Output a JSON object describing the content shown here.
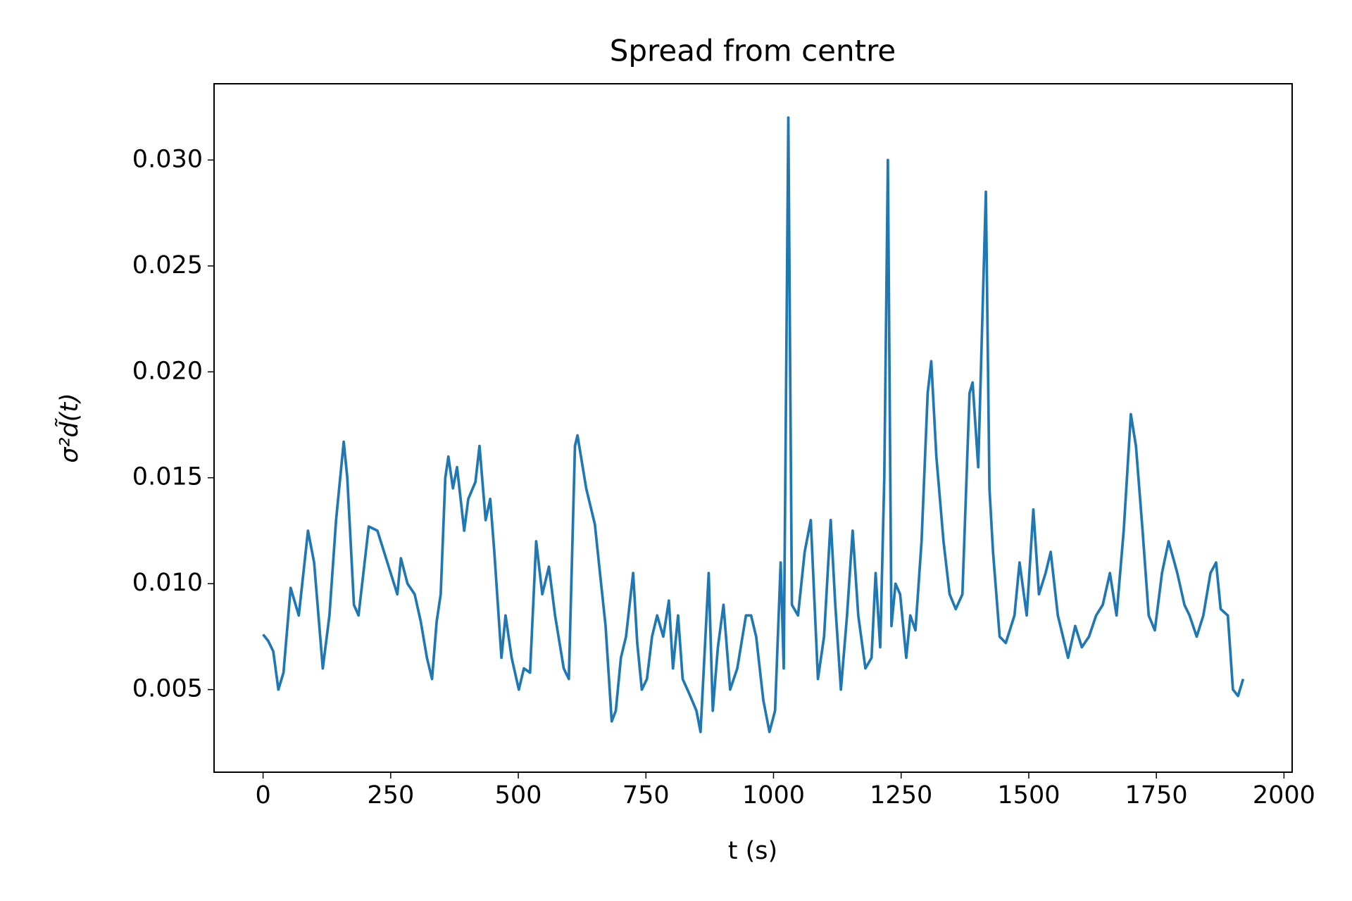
{
  "chart_data": {
    "type": "line",
    "title": "Spread from centre",
    "xlabel": "t (s)",
    "ylabel": "σ²d̃(t)",
    "x": [
      0,
      10,
      20,
      30,
      40,
      54,
      70,
      88,
      100,
      117,
      130,
      143,
      158,
      165,
      178,
      187,
      207,
      224,
      250,
      263,
      270,
      283,
      297,
      309,
      321,
      331,
      340,
      348,
      357,
      363,
      372,
      380,
      394,
      402,
      416,
      424,
      436,
      445,
      453,
      467,
      475,
      487,
      501,
      511,
      523,
      535,
      547,
      560,
      572,
      589,
      599,
      611,
      616,
      633,
      650,
      660,
      671,
      683,
      691,
      701,
      711,
      725,
      733,
      742,
      752,
      762,
      772,
      784,
      795,
      803,
      813,
      822,
      835,
      849,
      857,
      873,
      881,
      891,
      902,
      915,
      929,
      946,
      956,
      966,
      980,
      992,
      1003,
      1014,
      1020,
      1029,
      1036,
      1048,
      1061,
      1073,
      1087,
      1099,
      1112,
      1121,
      1132,
      1144,
      1155,
      1166,
      1180,
      1192,
      1200,
      1209,
      1217,
      1224,
      1231,
      1239,
      1248,
      1260,
      1268,
      1278,
      1290,
      1302,
      1309,
      1319,
      1333,
      1345,
      1357,
      1370,
      1384,
      1390,
      1401,
      1416,
      1423,
      1430,
      1443,
      1455,
      1472,
      1482,
      1496,
      1509,
      1520,
      1533,
      1543,
      1557,
      1577,
      1591,
      1604,
      1618,
      1632,
      1645,
      1659,
      1672,
      1686,
      1700,
      1710,
      1723,
      1735,
      1747,
      1761,
      1774,
      1791,
      1805,
      1815,
      1829,
      1842,
      1856,
      1867,
      1876,
      1890,
      1900,
      1910,
      1920
    ],
    "series": [
      {
        "name": "σ²d̃(t)",
        "color": "#1f77b4",
        "values": [
          0.0076,
          0.0073,
          0.0068,
          0.005,
          0.0058,
          0.0098,
          0.0085,
          0.0125,
          0.011,
          0.006,
          0.0085,
          0.013,
          0.0167,
          0.015,
          0.009,
          0.0085,
          0.0127,
          0.0125,
          0.0105,
          0.0095,
          0.0112,
          0.01,
          0.0095,
          0.0082,
          0.0065,
          0.0055,
          0.0082,
          0.0095,
          0.015,
          0.016,
          0.0145,
          0.0155,
          0.0125,
          0.014,
          0.0148,
          0.0165,
          0.013,
          0.014,
          0.0115,
          0.0065,
          0.0085,
          0.0065,
          0.005,
          0.006,
          0.0058,
          0.012,
          0.0095,
          0.0108,
          0.0085,
          0.006,
          0.0055,
          0.0165,
          0.017,
          0.0145,
          0.0128,
          0.0105,
          0.008,
          0.0035,
          0.004,
          0.0065,
          0.0075,
          0.0105,
          0.0072,
          0.005,
          0.0055,
          0.0075,
          0.0085,
          0.0075,
          0.0092,
          0.006,
          0.0085,
          0.0055,
          0.0048,
          0.004,
          0.003,
          0.0105,
          0.004,
          0.007,
          0.009,
          0.005,
          0.006,
          0.0085,
          0.0085,
          0.0075,
          0.0045,
          0.003,
          0.004,
          0.011,
          0.006,
          0.032,
          0.009,
          0.0085,
          0.0115,
          0.013,
          0.0055,
          0.0075,
          0.013,
          0.009,
          0.005,
          0.0085,
          0.0125,
          0.0085,
          0.006,
          0.0065,
          0.0105,
          0.007,
          0.015,
          0.03,
          0.008,
          0.01,
          0.0095,
          0.0065,
          0.0085,
          0.0078,
          0.012,
          0.019,
          0.0205,
          0.016,
          0.012,
          0.0095,
          0.0088,
          0.0095,
          0.019,
          0.0195,
          0.0155,
          0.0285,
          0.0145,
          0.0115,
          0.0075,
          0.0072,
          0.0085,
          0.011,
          0.0085,
          0.0135,
          0.0095,
          0.0105,
          0.0115,
          0.0085,
          0.0065,
          0.008,
          0.007,
          0.0075,
          0.0085,
          0.009,
          0.0105,
          0.0085,
          0.0125,
          0.018,
          0.0165,
          0.0125,
          0.0085,
          0.0078,
          0.0105,
          0.012,
          0.0105,
          0.009,
          0.0085,
          0.0075,
          0.0085,
          0.0105,
          0.011,
          0.0088,
          0.0085,
          0.005,
          0.0047,
          0.0055
        ]
      }
    ],
    "xlim": [
      -96,
      2016
    ],
    "xticks": [
      0,
      250,
      500,
      750,
      1000,
      1250,
      1500,
      1750,
      2000
    ],
    "ylim": [
      0.0011,
      0.0336
    ],
    "yticks": [
      0.005,
      {
        "value": 0.01,
        "label": "0.010"
      },
      0.015,
      {
        "value": 0.02,
        "label": "0.020"
      },
      0.025,
      {
        "value": 0.03,
        "label": "0.030"
      }
    ],
    "grid": false
  }
}
